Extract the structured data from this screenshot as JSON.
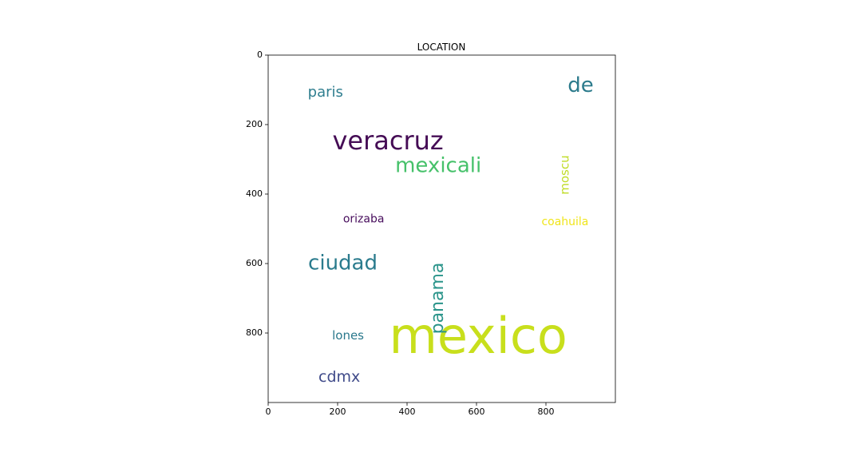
{
  "chart_data": {
    "type": "wordcloud",
    "title": "LOCATION",
    "xlabel": "",
    "ylabel": "",
    "xlim": [
      0,
      1000
    ],
    "ylim": [
      1000,
      0
    ],
    "x_ticks": [
      0,
      200,
      400,
      600,
      800
    ],
    "y_ticks": [
      0,
      200,
      400,
      600,
      800
    ],
    "grid": false,
    "words": [
      {
        "text": "mexico",
        "x": 605,
        "y": 818,
        "size": 62,
        "color": "#c8df1c",
        "rotation": 0
      },
      {
        "text": "veracruz",
        "x": 345,
        "y": 250,
        "size": 32,
        "color": "#450c55",
        "rotation": 0
      },
      {
        "text": "mexicali",
        "x": 490,
        "y": 320,
        "size": 26,
        "color": "#46c16a",
        "rotation": 0
      },
      {
        "text": "ciudad",
        "x": 215,
        "y": 600,
        "size": 26,
        "color": "#2a7b8d",
        "rotation": 0
      },
      {
        "text": "panama",
        "x": 490,
        "y": 700,
        "size": 22,
        "color": "#2a948a",
        "rotation": -90
      },
      {
        "text": "de",
        "x": 900,
        "y": 88,
        "size": 26,
        "color": "#2c7b8c",
        "rotation": 0
      },
      {
        "text": "paris",
        "x": 165,
        "y": 108,
        "size": 18,
        "color": "#2f7e8f",
        "rotation": 0
      },
      {
        "text": "cdmx",
        "x": 205,
        "y": 928,
        "size": 19,
        "color": "#3f4a89",
        "rotation": 0
      },
      {
        "text": "moscu",
        "x": 855,
        "y": 345,
        "size": 15,
        "color": "#c0dc27",
        "rotation": -90
      },
      {
        "text": "coahuila",
        "x": 855,
        "y": 480,
        "size": 14,
        "color": "#f0e51b",
        "rotation": 0
      },
      {
        "text": "orizaba",
        "x": 275,
        "y": 472,
        "size": 14,
        "color": "#470d5c",
        "rotation": 0
      },
      {
        "text": "lones",
        "x": 230,
        "y": 808,
        "size": 15,
        "color": "#2a788c",
        "rotation": 0
      }
    ]
  }
}
